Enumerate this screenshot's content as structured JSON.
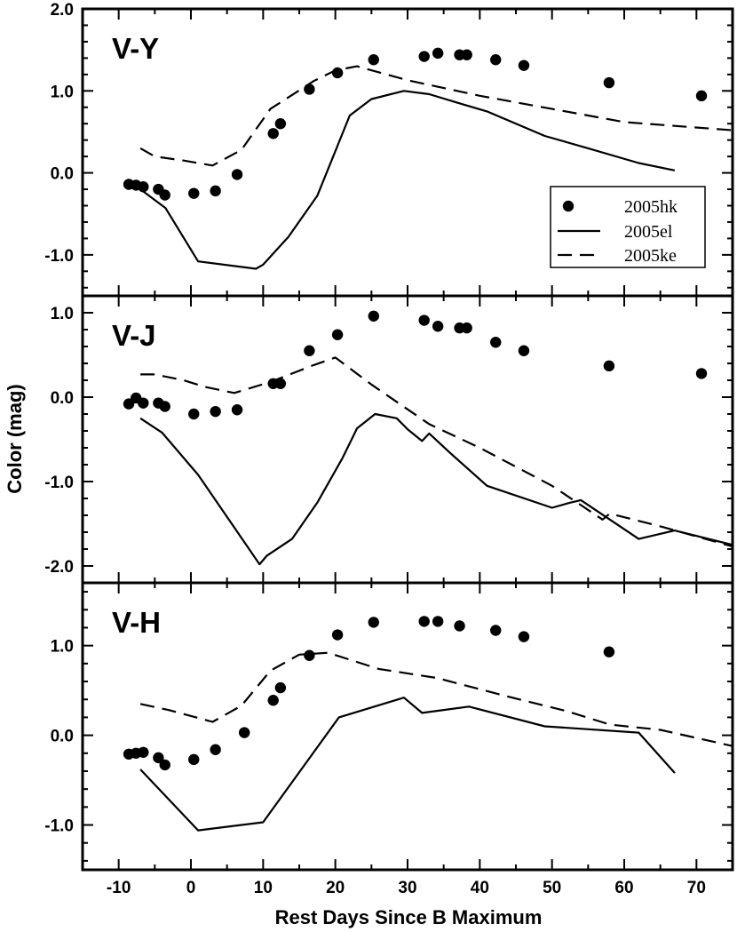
{
  "chart_data": [
    {
      "type": "line",
      "panel_label": "V-Y",
      "ylim": [
        -1.5,
        2.0
      ],
      "yticks": [
        -1.0,
        0.0,
        1.0,
        2.0
      ],
      "ytick_labels": [
        "-1.0",
        "0.0",
        "1.0",
        "2.0"
      ],
      "xlim": [
        -15,
        75
      ],
      "series": [
        {
          "name": "2005hk",
          "kind": "scatter",
          "x": [
            -8.6,
            -7.6,
            -6.6,
            -4.5,
            -3.6,
            0.4,
            3.4,
            6.4,
            11.4,
            12.4,
            16.4,
            20.3,
            25.3,
            32.3,
            34.2,
            37.2,
            38.2,
            42.2,
            46.1,
            57.9,
            70.7
          ],
          "y": [
            -0.14,
            -0.15,
            -0.17,
            -0.2,
            -0.27,
            -0.25,
            -0.22,
            -0.02,
            0.48,
            0.6,
            1.02,
            1.22,
            1.38,
            1.42,
            1.46,
            1.44,
            1.44,
            1.38,
            1.31,
            1.1,
            0.94
          ]
        },
        {
          "name": "2005el",
          "kind": "solid",
          "x": [
            -7,
            -3.5,
            1,
            9,
            10,
            13.5,
            17.5,
            22,
            25,
            29.5,
            33,
            37.5,
            41,
            49,
            55,
            62,
            67
          ],
          "y": [
            -0.2,
            -0.43,
            -1.08,
            -1.17,
            -1.12,
            -0.78,
            -0.28,
            0.7,
            0.9,
            1.0,
            0.96,
            0.84,
            0.75,
            0.45,
            0.3,
            0.12,
            0.03
          ]
        },
        {
          "name": "2005ke",
          "kind": "dashed",
          "x": [
            -7,
            -5,
            -1,
            3,
            7,
            11,
            17,
            20,
            23,
            30,
            40,
            50,
            60,
            75
          ],
          "y": [
            0.3,
            0.2,
            0.15,
            0.09,
            0.28,
            0.78,
            1.12,
            1.25,
            1.3,
            1.13,
            0.94,
            0.78,
            0.62,
            0.52
          ]
        }
      ]
    },
    {
      "type": "line",
      "panel_label": "V-J",
      "ylim": [
        -2.2,
        1.2
      ],
      "yticks": [
        -2.0,
        -1.0,
        0.0,
        1.0
      ],
      "ytick_labels": [
        "-2.0",
        "-1.0",
        "0.0",
        "1.0"
      ],
      "xlim": [
        -15,
        75
      ],
      "series": [
        {
          "name": "2005hk",
          "kind": "scatter",
          "x": [
            -8.6,
            -7.6,
            -6.6,
            -4.5,
            -3.6,
            0.4,
            3.4,
            6.4,
            11.4,
            12.4,
            16.4,
            20.3,
            25.3,
            32.3,
            34.2,
            37.2,
            38.2,
            42.2,
            46.1,
            57.9,
            70.7
          ],
          "y": [
            -0.08,
            -0.01,
            -0.07,
            -0.07,
            -0.11,
            -0.2,
            -0.17,
            -0.15,
            0.16,
            0.16,
            0.55,
            0.74,
            0.96,
            0.91,
            0.84,
            0.82,
            0.82,
            0.65,
            0.55,
            0.37,
            0.28
          ]
        },
        {
          "name": "2005el",
          "kind": "solid",
          "x": [
            -7,
            -4,
            1,
            9.5,
            10.5,
            14,
            17.5,
            21,
            23,
            25.5,
            28.5,
            30,
            32,
            33,
            36,
            41,
            50,
            52.5,
            54,
            62,
            67,
            75
          ],
          "y": [
            -0.25,
            -0.42,
            -0.92,
            -1.98,
            -1.88,
            -1.68,
            -1.25,
            -0.72,
            -0.37,
            -0.2,
            -0.25,
            -0.38,
            -0.52,
            -0.43,
            -0.67,
            -1.05,
            -1.31,
            -1.25,
            -1.22,
            -1.68,
            -1.58,
            -1.75
          ]
        },
        {
          "name": "2005ke",
          "kind": "dashed",
          "x": [
            -7,
            -5,
            -1,
            2,
            6,
            11,
            17,
            20,
            25,
            33,
            40,
            50,
            57,
            58,
            65,
            75
          ],
          "y": [
            0.27,
            0.27,
            0.2,
            0.12,
            0.05,
            0.18,
            0.38,
            0.47,
            0.15,
            -0.32,
            -0.6,
            -1.05,
            -1.45,
            -1.38,
            -1.53,
            -1.77
          ]
        }
      ]
    },
    {
      "type": "line",
      "panel_label": "V-H",
      "ylim": [
        -1.5,
        1.7
      ],
      "yticks": [
        -1.0,
        0.0,
        1.0
      ],
      "ytick_labels": [
        "-1.0",
        "0.0",
        "1.0"
      ],
      "xlim": [
        -15,
        75
      ],
      "xticks": [
        -10,
        0,
        10,
        20,
        30,
        40,
        50,
        60,
        70
      ],
      "xtick_labels": [
        "-10",
        "0",
        "10",
        "20",
        "30",
        "40",
        "50",
        "60",
        "70"
      ],
      "xlabel": "Rest Days Since B Maximum",
      "series": [
        {
          "name": "2005hk",
          "kind": "scatter",
          "x": [
            -8.6,
            -7.6,
            -6.6,
            -4.5,
            -3.6,
            0.4,
            3.4,
            7.4,
            11.4,
            12.4,
            16.4,
            20.3,
            25.3,
            32.3,
            34.2,
            37.2,
            42.2,
            46.1,
            57.9
          ],
          "y": [
            -0.21,
            -0.2,
            -0.19,
            -0.25,
            -0.33,
            -0.27,
            -0.16,
            0.03,
            0.39,
            0.53,
            0.89,
            1.12,
            1.26,
            1.27,
            1.27,
            1.22,
            1.17,
            1.1,
            0.93
          ]
        },
        {
          "name": "2005el",
          "kind": "solid",
          "x": [
            -7,
            1,
            10,
            20.5,
            29.5,
            32,
            38.5,
            49,
            62,
            67
          ],
          "y": [
            -0.38,
            -1.06,
            -0.97,
            0.2,
            0.42,
            0.25,
            0.32,
            0.1,
            0.03,
            -0.42
          ]
        },
        {
          "name": "2005ke",
          "kind": "dashed",
          "x": [
            -7,
            -3,
            3,
            7,
            11,
            15,
            19,
            26,
            34,
            44,
            52,
            58,
            65,
            75
          ],
          "y": [
            0.35,
            0.28,
            0.15,
            0.33,
            0.72,
            0.9,
            0.92,
            0.74,
            0.64,
            0.43,
            0.27,
            0.12,
            0.06,
            -0.12
          ]
        }
      ]
    }
  ],
  "ylabel": "Color (mag)",
  "legend": [
    {
      "label": "2005hk",
      "kind": "scatter"
    },
    {
      "label": "2005el",
      "kind": "solid"
    },
    {
      "label": "2005ke",
      "kind": "dashed"
    }
  ],
  "legend_location": "right, inside top panel"
}
